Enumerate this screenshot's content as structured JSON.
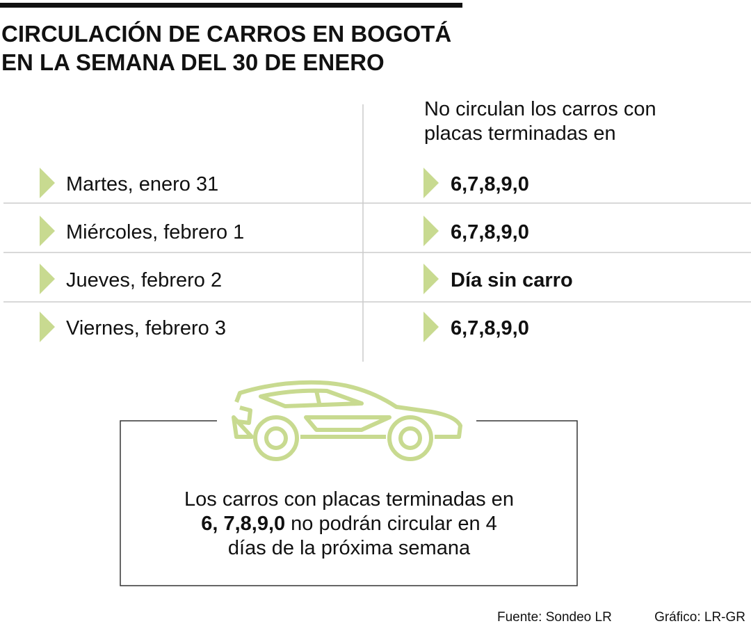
{
  "header": {
    "title": [
      "CIRCULACIÓN DE CARROS EN BOGOTÁ",
      "EN LA SEMANA DEL 30 DE ENERO"
    ]
  },
  "table": {
    "column_header": [
      "No circulan los carros con",
      "placas terminadas en"
    ],
    "rows": [
      [
        "Martes, enero 31",
        "6,7,8,9,0"
      ],
      [
        "Miércoles, febrero 1",
        "6,7,8,9,0"
      ],
      [
        "Jueves, febrero 2",
        "Día sin carro"
      ],
      [
        "Viernes, febrero 3",
        "6,7,8,9,0"
      ]
    ]
  },
  "note": {
    "line1": "Los carros con placas terminadas en",
    "bold": "6, 7,8,9,0",
    "line2_rest": "no podrán circular en 4",
    "line3": "días de la próxima semana"
  },
  "footer": {
    "source": "Fuente: Sondeo LR",
    "credit": "Gráfico: LR-GR"
  }
}
